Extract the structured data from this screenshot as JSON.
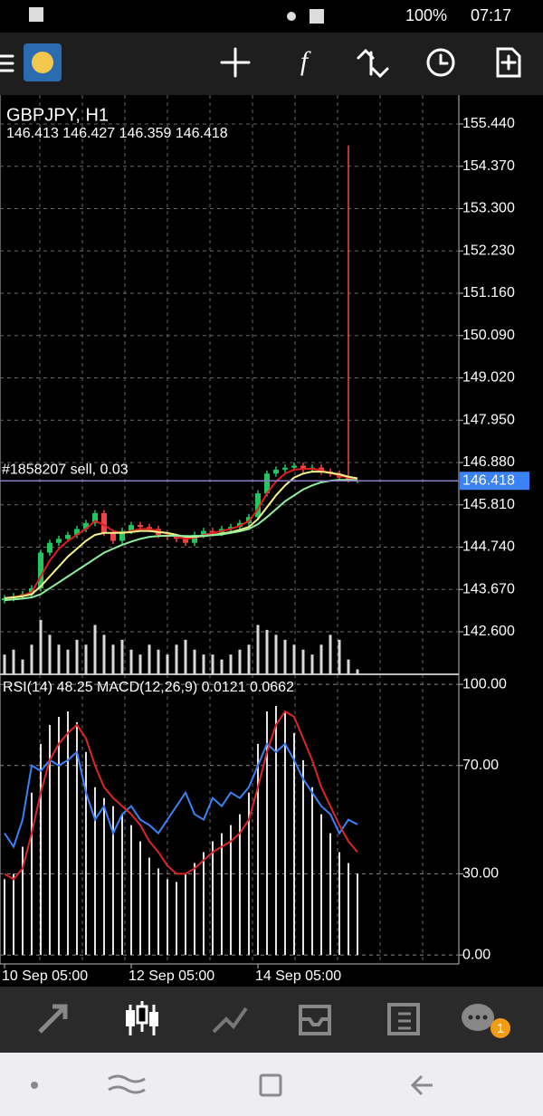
{
  "status_bar": {
    "battery": "100%",
    "time": "07:17"
  },
  "chart_data": {
    "type": "candlestick",
    "title": "GBPJPY, H1",
    "ohlc_text": "146.413 146.427 146.359 146.418",
    "order_label": "#1858207 sell, 0.03",
    "bid": 146.418,
    "ylim": [
      141.525,
      156.172
    ],
    "yticks": [
      {
        "value": 155.44,
        "label": "155.440"
      },
      {
        "value": 154.37,
        "label": "154.370"
      },
      {
        "value": 153.3,
        "label": "153.300"
      },
      {
        "value": 152.23,
        "label": "152.230"
      },
      {
        "value": 151.16,
        "label": "151.160"
      },
      {
        "value": 150.09,
        "label": "150.090"
      },
      {
        "value": 149.02,
        "label": "149.020"
      },
      {
        "value": 147.95,
        "label": "147.950"
      },
      {
        "value": 146.88,
        "label": "146.880"
      },
      {
        "value": 145.81,
        "label": "145.810"
      },
      {
        "value": 144.74,
        "label": "144.740"
      },
      {
        "value": 143.67,
        "label": "143.670"
      },
      {
        "value": 142.6,
        "label": "142.600"
      }
    ],
    "xticks": [
      {
        "value": 0,
        "label": "10 Sep 05:00"
      },
      {
        "value": 14,
        "label": "12 Sep 05:00"
      },
      {
        "value": 28,
        "label": "14 Sep 05:00"
      }
    ],
    "grid": true,
    "up_color": "#22c55e",
    "down_color": "#ef4444",
    "open": [
      143.4,
      143.45,
      143.5,
      143.55,
      143.7,
      144.6,
      144.85,
      144.95,
      145.05,
      145.2,
      145.35,
      145.6,
      145.1,
      144.9,
      145.15,
      145.3,
      145.25,
      145.2,
      145.05,
      145.0,
      144.95,
      144.85,
      145.05,
      145.15,
      145.1,
      145.2,
      145.25,
      145.35,
      145.5,
      146.1,
      146.6,
      146.7,
      146.75,
      146.8,
      146.7,
      146.75,
      146.65,
      146.6,
      146.5,
      146.413
    ],
    "high": [
      143.53,
      143.58,
      143.63,
      143.78,
      144.68,
      144.93,
      145.03,
      145.13,
      145.28,
      145.43,
      145.68,
      145.68,
      145.18,
      145.23,
      145.38,
      145.38,
      145.33,
      145.28,
      145.13,
      145.08,
      145.03,
      145.13,
      145.23,
      145.23,
      145.28,
      145.33,
      145.43,
      145.58,
      146.18,
      146.68,
      146.78,
      146.83,
      146.88,
      146.88,
      146.83,
      146.83,
      146.73,
      146.68,
      154.9,
      146.427
    ],
    "low": [
      143.32,
      143.37,
      143.42,
      143.47,
      143.62,
      144.52,
      144.77,
      144.87,
      144.97,
      145.12,
      145.27,
      145.02,
      144.82,
      144.82,
      145.07,
      145.17,
      145.12,
      144.97,
      144.92,
      144.87,
      144.77,
      144.77,
      144.97,
      145.02,
      145.02,
      145.12,
      145.17,
      145.27,
      145.42,
      146.02,
      146.52,
      146.62,
      146.67,
      146.62,
      146.62,
      146.57,
      146.52,
      146.42,
      146.37,
      146.359
    ],
    "close": [
      143.45,
      143.5,
      143.55,
      143.7,
      144.6,
      144.85,
      144.95,
      145.05,
      145.2,
      145.35,
      145.6,
      145.1,
      144.9,
      145.15,
      145.3,
      145.25,
      145.2,
      145.05,
      145.0,
      144.95,
      144.85,
      145.05,
      145.15,
      145.1,
      145.2,
      145.25,
      145.35,
      145.5,
      146.1,
      146.6,
      146.7,
      146.75,
      146.8,
      146.7,
      146.75,
      146.65,
      146.6,
      146.5,
      146.45,
      146.418
    ],
    "series": [
      {
        "color": "#e11d1d",
        "values": [
          143.45,
          143.48,
          143.52,
          143.6,
          144.0,
          144.4,
          144.7,
          144.9,
          145.05,
          145.2,
          145.4,
          145.3,
          145.15,
          145.1,
          145.15,
          145.2,
          145.2,
          145.15,
          145.08,
          145.0,
          144.95,
          144.98,
          145.05,
          145.1,
          145.15,
          145.2,
          145.28,
          145.4,
          145.7,
          146.1,
          146.4,
          146.6,
          146.7,
          146.72,
          146.72,
          146.68,
          146.62,
          146.55,
          146.5,
          146.45
        ]
      },
      {
        "color": "#f5f58a",
        "values": [
          143.45,
          143.47,
          143.5,
          143.55,
          143.75,
          144.0,
          144.25,
          144.5,
          144.7,
          144.9,
          145.05,
          145.1,
          145.1,
          145.1,
          145.12,
          145.15,
          145.15,
          145.12,
          145.1,
          145.05,
          145.0,
          145.0,
          145.02,
          145.05,
          145.08,
          145.12,
          145.18,
          145.25,
          145.45,
          145.75,
          146.05,
          146.3,
          146.5,
          146.6,
          146.65,
          146.65,
          146.62,
          146.58,
          146.52,
          146.48
        ]
      },
      {
        "color": "#8ef0a0",
        "values": [
          143.4,
          143.42,
          143.44,
          143.47,
          143.55,
          143.7,
          143.85,
          144.0,
          144.15,
          144.3,
          144.45,
          144.6,
          144.7,
          144.8,
          144.88,
          144.95,
          145.0,
          145.02,
          145.03,
          145.03,
          145.02,
          145.02,
          145.03,
          145.04,
          145.06,
          145.1,
          145.14,
          145.2,
          145.32,
          145.5,
          145.7,
          145.9,
          146.05,
          146.2,
          146.3,
          146.38,
          146.42,
          146.44,
          146.44,
          146.43
        ]
      }
    ],
    "volume": {
      "color": "#d9d9d9",
      "values": [
        20,
        25,
        15,
        30,
        55,
        40,
        30,
        25,
        35,
        30,
        50,
        40,
        30,
        35,
        25,
        20,
        30,
        25,
        20,
        30,
        35,
        25,
        20,
        20,
        15,
        20,
        25,
        30,
        50,
        45,
        40,
        35,
        30,
        25,
        20,
        30,
        40,
        35,
        15,
        5
      ]
    },
    "indicator": {
      "label": "RSI(14) 48.25 MACD(12,26,9) 0.0121 0.0662",
      "ylim": [
        -3.3,
        103.7
      ],
      "yticks": [
        {
          "value": 100,
          "label": "100.00"
        },
        {
          "value": 70,
          "label": "70.00"
        },
        {
          "value": 30,
          "label": "30.00"
        },
        {
          "value": 0,
          "label": "0.00"
        }
      ],
      "rsi": {
        "color": "#3b82f6",
        "values": [
          45,
          40,
          50,
          70,
          68,
          72,
          70,
          72,
          75,
          60,
          50,
          55,
          45,
          52,
          55,
          50,
          48,
          45,
          50,
          55,
          60,
          52,
          50,
          58,
          55,
          60,
          58,
          62,
          70,
          78,
          75,
          78,
          72,
          65,
          60,
          55,
          52,
          45,
          50,
          48.25
        ]
      },
      "signal": {
        "color": "#dc2626",
        "values": [
          30,
          28,
          32,
          45,
          60,
          72,
          78,
          82,
          85,
          80,
          70,
          62,
          58,
          55,
          52,
          48,
          42,
          38,
          33,
          30,
          30,
          32,
          35,
          38,
          40,
          42,
          45,
          50,
          62,
          75,
          85,
          90,
          88,
          80,
          72,
          62,
          55,
          48,
          42,
          38
        ]
      },
      "histogram": {
        "color": "#e5e5e5",
        "values": [
          28,
          30,
          40,
          60,
          78,
          85,
          88,
          90,
          86,
          75,
          62,
          58,
          55,
          52,
          48,
          42,
          36,
          32,
          28,
          27,
          30,
          34,
          38,
          42,
          45,
          48,
          52,
          60,
          78,
          90,
          92,
          90,
          82,
          72,
          62,
          52,
          45,
          38,
          34,
          30
        ]
      }
    }
  },
  "nav": {
    "badge": "1"
  }
}
